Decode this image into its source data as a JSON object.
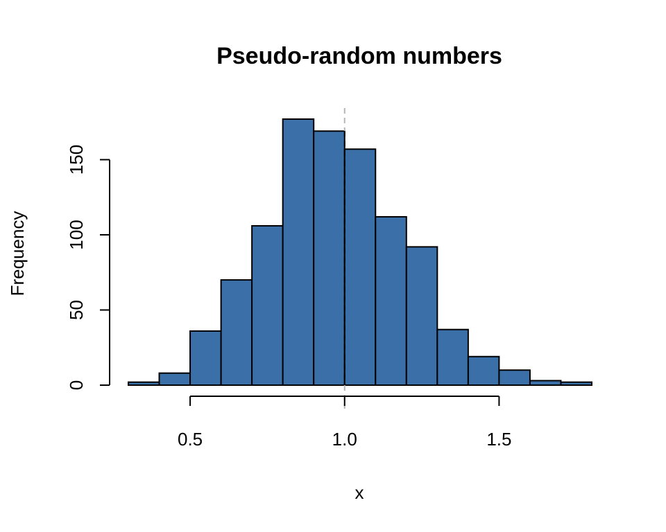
{
  "chart_data": {
    "type": "bar",
    "title": "Pseudo-random numbers",
    "xlabel": "x",
    "ylabel": "Frequency",
    "bin_edges": [
      0.3,
      0.4,
      0.5,
      0.6,
      0.7,
      0.8,
      0.9,
      1.0,
      1.1,
      1.2,
      1.3,
      1.4,
      1.5,
      1.6,
      1.7,
      1.8
    ],
    "values": [
      2,
      8,
      36,
      70,
      106,
      177,
      169,
      157,
      112,
      92,
      37,
      19,
      10,
      3,
      2
    ],
    "xlim": [
      0.3,
      1.8
    ],
    "ylim": [
      0,
      180
    ],
    "x_ticks": [
      0.5,
      1.0,
      1.5
    ],
    "x_tick_labels": [
      "0.5",
      "1.0",
      "1.5"
    ],
    "y_ticks": [
      0,
      50,
      100,
      150
    ],
    "y_tick_labels": [
      "0",
      "50",
      "100",
      "150"
    ],
    "reference_line_x": 1.0,
    "bar_color": "#3a6fa8",
    "reference_line_color": "#b5b5b5"
  }
}
